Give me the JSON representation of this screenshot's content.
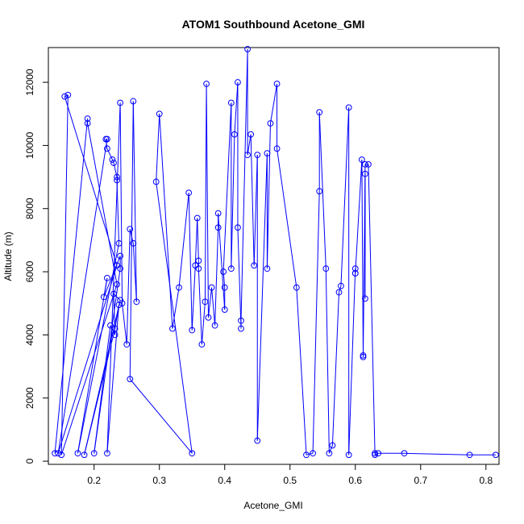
{
  "chart_data": {
    "type": "line",
    "title": "ATOM1 Southbound Acetone_GMI",
    "xlabel": "Acetone_GMI",
    "ylabel": "Altitude (m)",
    "xlim": [
      0.13,
      0.82
    ],
    "ylim": [
      -100,
      13100
    ],
    "xticks": [
      0.2,
      0.3,
      0.4,
      0.5,
      0.6,
      0.7,
      0.8
    ],
    "xtick_labels": [
      "0.2",
      "0.3",
      "0.4",
      "0.5",
      "0.6",
      "0.7",
      "0.8"
    ],
    "yticks": [
      0,
      2000,
      4000,
      6000,
      8000,
      10000,
      12000
    ],
    "ytick_labels": [
      "0",
      "2000",
      "4000",
      "6000",
      "8000",
      "10000",
      "12000"
    ],
    "color": "#0000ff",
    "marker": "open-circle",
    "grid": false,
    "series": [
      {
        "points": [
          [
            0.14,
            250
          ],
          [
            0.19,
            10850
          ],
          [
            0.19,
            10700
          ],
          [
            0.235,
            5600
          ],
          [
            0.15,
            200
          ],
          [
            0.16,
            11600
          ],
          [
            0.155,
            11550
          ],
          [
            0.235,
            6200
          ],
          [
            0.145,
            250
          ],
          [
            0.22,
            10200
          ],
          [
            0.218,
            10200
          ],
          [
            0.22,
            9900
          ],
          [
            0.228,
            9550
          ],
          [
            0.23,
            9450
          ],
          [
            0.235,
            9000
          ],
          [
            0.235,
            8900
          ],
          [
            0.238,
            6900
          ],
          [
            0.175,
            250
          ],
          [
            0.22,
            5800
          ],
          [
            0.215,
            5200
          ],
          [
            0.24,
            6500
          ],
          [
            0.24,
            6100
          ],
          [
            0.2,
            250
          ],
          [
            0.225,
            4300
          ],
          [
            0.232,
            4000
          ],
          [
            0.23,
            5300
          ],
          [
            0.24,
            5100
          ],
          [
            0.185,
            200
          ],
          [
            0.232,
            4200
          ],
          [
            0.238,
            4950
          ],
          [
            0.22,
            250
          ],
          [
            0.24,
            11350
          ],
          [
            0.243,
            5000
          ],
          [
            0.25,
            3700
          ],
          [
            0.255,
            7350
          ],
          [
            0.26,
            6900
          ],
          [
            0.265,
            5050
          ],
          [
            0.26,
            11400
          ],
          [
            0.255,
            2600
          ],
          [
            0.35,
            250
          ],
          [
            0.295,
            8850
          ],
          [
            0.3,
            11000
          ],
          [
            0.32,
            4200
          ],
          [
            0.33,
            5500
          ],
          [
            0.345,
            8500
          ],
          [
            0.35,
            4150
          ],
          [
            0.355,
            6200
          ],
          [
            0.358,
            7700
          ],
          [
            0.36,
            6350
          ],
          [
            0.36,
            6100
          ],
          [
            0.365,
            3700
          ],
          [
            0.37,
            5050
          ],
          [
            0.372,
            11950
          ],
          [
            0.375,
            4550
          ],
          [
            0.38,
            5500
          ],
          [
            0.385,
            4300
          ],
          [
            0.39,
            7400
          ],
          [
            0.39,
            7850
          ],
          [
            0.4,
            4800
          ],
          [
            0.4,
            5500
          ],
          [
            0.398,
            6000
          ],
          [
            0.41,
            11350
          ],
          [
            0.41,
            6100
          ],
          [
            0.415,
            10350
          ],
          [
            0.42,
            12000
          ],
          [
            0.42,
            7400
          ],
          [
            0.425,
            4200
          ],
          [
            0.425,
            4450
          ],
          [
            0.435,
            13050
          ],
          [
            0.435,
            9700
          ],
          [
            0.44,
            10350
          ],
          [
            0.445,
            6200
          ],
          [
            0.45,
            9700
          ],
          [
            0.45,
            650
          ],
          [
            0.465,
            9750
          ],
          [
            0.465,
            6100
          ],
          [
            0.47,
            10700
          ],
          [
            0.48,
            11950
          ],
          [
            0.48,
            9900
          ],
          [
            0.51,
            5500
          ],
          [
            0.525,
            200
          ],
          [
            0.535,
            250
          ],
          [
            0.545,
            8550
          ],
          [
            0.545,
            11050
          ],
          [
            0.555,
            6100
          ],
          [
            0.56,
            250
          ],
          [
            0.565,
            500
          ],
          [
            0.575,
            5350
          ],
          [
            0.578,
            5550
          ],
          [
            0.59,
            11200
          ],
          [
            0.59,
            200
          ],
          [
            0.6,
            6100
          ],
          [
            0.6,
            5950
          ],
          [
            0.6,
            5950
          ],
          [
            0.61,
            9550
          ],
          [
            0.612,
            3350
          ],
          [
            0.612,
            3300
          ],
          [
            0.615,
            9100
          ],
          [
            0.615,
            5150
          ],
          [
            0.615,
            9400
          ],
          [
            0.62,
            9400
          ],
          [
            0.63,
            250
          ],
          [
            0.63,
            200
          ],
          [
            0.635,
            250
          ],
          [
            0.675,
            250
          ],
          [
            0.775,
            200
          ],
          [
            0.815,
            200
          ]
        ]
      }
    ]
  }
}
